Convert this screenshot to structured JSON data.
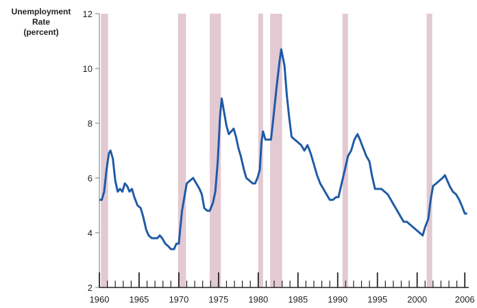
{
  "chart_data": {
    "type": "line",
    "y_label_lines": [
      "Unemployment",
      "Rate",
      "(percent)"
    ],
    "xlim": [
      1960,
      2006.5
    ],
    "xticks": [
      1960,
      1965,
      1970,
      1975,
      1980,
      1985,
      1990,
      1995,
      2000,
      2006
    ],
    "xminorticks": [
      1961,
      1962,
      1963,
      1964,
      1966,
      1967,
      1968,
      1969,
      1971,
      1972,
      1973,
      1974,
      1976,
      1977,
      1978,
      1979,
      1981,
      1982,
      1983,
      1984,
      1986,
      1987,
      1988,
      1989,
      1991,
      1992,
      1993,
      1994,
      1996,
      1997,
      1998,
      1999,
      2001,
      2002,
      2003,
      2004,
      2005
    ],
    "ylim": [
      2,
      12
    ],
    "yticks": [
      2,
      4,
      6,
      8,
      10,
      12
    ],
    "shade_color": "#e2c9d2",
    "shaded_periods": [
      [
        1960.2,
        1961.1
      ],
      [
        1969.9,
        1970.9
      ],
      [
        1973.9,
        1975.3
      ],
      [
        1980.0,
        1980.6
      ],
      [
        1981.5,
        1983.0
      ],
      [
        1990.6,
        1991.3
      ],
      [
        2001.2,
        2001.9
      ]
    ],
    "series": [
      {
        "color": "#1f5aa6",
        "x": [
          1960.0,
          1960.3,
          1960.6,
          1960.9,
          1961.2,
          1961.4,
          1961.7,
          1962.0,
          1962.3,
          1962.6,
          1962.9,
          1963.2,
          1963.5,
          1963.8,
          1964.1,
          1964.4,
          1964.8,
          1965.2,
          1965.5,
          1965.9,
          1966.2,
          1966.6,
          1966.9,
          1967.3,
          1967.6,
          1967.9,
          1968.3,
          1968.7,
          1969.0,
          1969.4,
          1969.7,
          1970.0,
          1970.2,
          1970.4,
          1970.7,
          1971.0,
          1971.4,
          1971.8,
          1972.2,
          1972.6,
          1972.9,
          1973.2,
          1973.6,
          1973.9,
          1974.3,
          1974.6,
          1974.9,
          1975.2,
          1975.4,
          1975.7,
          1976.0,
          1976.3,
          1976.6,
          1976.9,
          1977.2,
          1977.5,
          1977.8,
          1978.2,
          1978.5,
          1978.9,
          1979.3,
          1979.6,
          1979.9,
          1980.2,
          1980.4,
          1980.6,
          1980.9,
          1981.3,
          1981.6,
          1981.9,
          1982.3,
          1982.7,
          1982.9,
          1983.3,
          1983.6,
          1983.9,
          1984.2,
          1984.6,
          1985.0,
          1985.4,
          1985.8,
          1986.2,
          1986.6,
          1987.0,
          1987.4,
          1987.8,
          1988.2,
          1988.6,
          1989.0,
          1989.4,
          1989.8,
          1990.1,
          1990.5,
          1990.9,
          1991.3,
          1991.7,
          1992.1,
          1992.5,
          1992.8,
          1993.2,
          1993.6,
          1994.0,
          1994.3,
          1994.7,
          1995.1,
          1995.5,
          1995.9,
          1996.3,
          1996.7,
          1997.1,
          1997.5,
          1997.9,
          1998.3,
          1998.7,
          1999.1,
          1999.5,
          1999.9,
          2000.3,
          2000.7,
          2001.0,
          2001.4,
          2001.7,
          2002.0,
          2002.4,
          2002.8,
          2003.2,
          2003.5,
          2003.8,
          2004.1,
          2004.5,
          2004.9,
          2005.3,
          2005.6,
          2006.0,
          2006.3
        ],
        "values": [
          5.2,
          5.2,
          5.5,
          6.3,
          6.9,
          7.0,
          6.7,
          5.9,
          5.5,
          5.6,
          5.5,
          5.8,
          5.7,
          5.5,
          5.6,
          5.3,
          5.0,
          4.9,
          4.6,
          4.1,
          3.9,
          3.8,
          3.8,
          3.8,
          3.9,
          3.8,
          3.6,
          3.5,
          3.4,
          3.4,
          3.6,
          3.6,
          4.2,
          4.8,
          5.3,
          5.8,
          5.9,
          6.0,
          5.8,
          5.6,
          5.4,
          4.9,
          4.8,
          4.8,
          5.1,
          5.5,
          6.6,
          8.3,
          8.9,
          8.4,
          7.9,
          7.6,
          7.7,
          7.8,
          7.5,
          7.1,
          6.8,
          6.3,
          6.0,
          5.9,
          5.8,
          5.8,
          6.0,
          6.3,
          7.3,
          7.7,
          7.4,
          7.4,
          7.4,
          8.2,
          9.3,
          10.3,
          10.7,
          10.1,
          9.0,
          8.2,
          7.5,
          7.4,
          7.3,
          7.2,
          7.0,
          7.2,
          6.9,
          6.5,
          6.1,
          5.8,
          5.6,
          5.4,
          5.2,
          5.2,
          5.3,
          5.3,
          5.8,
          6.3,
          6.8,
          7.0,
          7.4,
          7.6,
          7.4,
          7.1,
          6.8,
          6.6,
          6.1,
          5.6,
          5.6,
          5.6,
          5.5,
          5.4,
          5.2,
          5.0,
          4.8,
          4.6,
          4.4,
          4.4,
          4.3,
          4.2,
          4.1,
          4.0,
          3.9,
          4.2,
          4.5,
          5.2,
          5.7,
          5.8,
          5.9,
          6.0,
          6.1,
          5.9,
          5.7,
          5.5,
          5.4,
          5.2,
          5.0,
          4.7,
          4.7
        ]
      }
    ]
  }
}
